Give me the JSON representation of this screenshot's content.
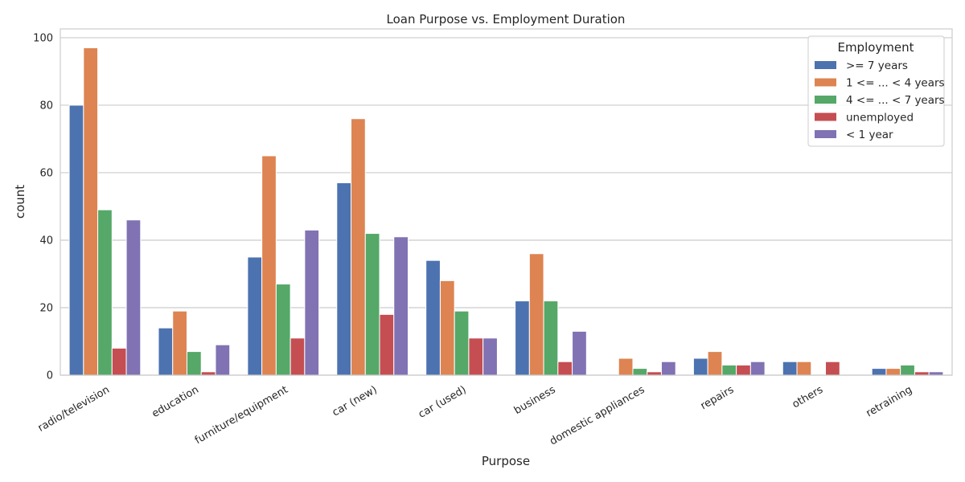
{
  "chart_data": {
    "type": "bar",
    "title": "Loan Purpose vs. Employment Duration",
    "xlabel": "Purpose",
    "ylabel": "count",
    "ylim": [
      0,
      100
    ],
    "yticks": [
      0,
      20,
      40,
      60,
      80,
      100
    ],
    "grid": "horizontal",
    "legend_title": "Employment",
    "legend_position": "top-right",
    "categories": [
      "radio/television",
      "education",
      "furniture/equipment",
      "car (new)",
      "car (used)",
      "business",
      "domestic appliances",
      "repairs",
      "others",
      "retraining"
    ],
    "series": [
      {
        "name": ">= 7 years",
        "color": "#4c72b0",
        "values": [
          80,
          14,
          35,
          57,
          34,
          22,
          0,
          5,
          4,
          2
        ]
      },
      {
        "name": "1 <= ... < 4 years",
        "color": "#dd8452",
        "values": [
          97,
          19,
          65,
          76,
          28,
          36,
          5,
          7,
          4,
          2
        ]
      },
      {
        "name": "4 <= ... < 7 years",
        "color": "#55a868",
        "values": [
          49,
          7,
          27,
          42,
          19,
          22,
          2,
          3,
          0,
          3
        ]
      },
      {
        "name": "unemployed",
        "color": "#c44e52",
        "values": [
          8,
          1,
          11,
          18,
          11,
          4,
          1,
          3,
          4,
          1
        ]
      },
      {
        "name": "< 1 year",
        "color": "#8172b3",
        "values": [
          46,
          9,
          43,
          41,
          11,
          13,
          4,
          4,
          0,
          1
        ]
      }
    ]
  }
}
